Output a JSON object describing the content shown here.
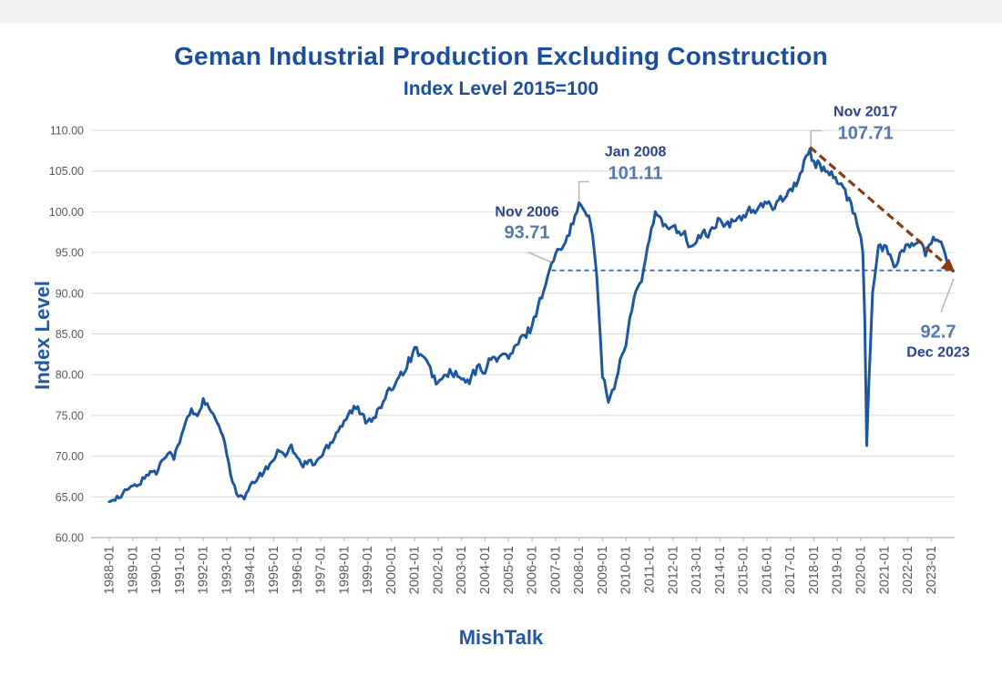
{
  "chart": {
    "title": "Geman Industrial Production Excluding Construction",
    "subtitle": "Index Level 2015=100",
    "y_axis_title": "Index Level",
    "source": "MishTalk"
  },
  "chart_data": {
    "type": "line",
    "title": "Geman Industrial Production Excluding Construction",
    "subtitle": "Index Level 2015=100",
    "xlabel": "",
    "ylabel": "Index Level",
    "ylim": [
      60,
      110
    ],
    "ytick_step": 5,
    "y_tick_labels": [
      "110.00",
      "105.00",
      "100.00",
      "95.00",
      "90.00",
      "85.00",
      "80.00",
      "75.00",
      "70.00",
      "65.00",
      "60.00"
    ],
    "x_tick_labels": [
      "1988-01",
      "1989-01",
      "1990-01",
      "1991-01",
      "1992-01",
      "1993-01",
      "1994-01",
      "1995-01",
      "1996-01",
      "1997-01",
      "1998-01",
      "1999-01",
      "2000-01",
      "2001-01",
      "2002-01",
      "2003-01",
      "2004-01",
      "2005-01",
      "2006-01",
      "2007-01",
      "2008-01",
      "2009-01",
      "2010-01",
      "2011-01",
      "2012-01",
      "2013-01",
      "2014-01",
      "2015-01",
      "2016-01",
      "2017-01",
      "2018-01",
      "2019-01",
      "2020-01",
      "2021-01",
      "2022-01",
      "2023-01"
    ],
    "x_start": "1988-01",
    "x_end": "2023-12",
    "frequency": "monthly",
    "grid": "horizontal",
    "legend": "none",
    "series": [
      {
        "name": "German industrial production excluding construction (index, 2015=100)",
        "quarterly_values": [
          64.4,
          64.9,
          65.0,
          65.9,
          66.2,
          66.6,
          67.3,
          68.2,
          67.9,
          69.6,
          70.6,
          69.9,
          71.7,
          74.2,
          75.6,
          75.0,
          76.8,
          75.9,
          74.5,
          73.2,
          70.3,
          66.9,
          65.0,
          64.8,
          66.2,
          67.1,
          67.9,
          68.6,
          69.7,
          70.9,
          70.2,
          71.2,
          69.7,
          68.8,
          69.4,
          69.1,
          69.9,
          71.1,
          72.1,
          73.3,
          74.4,
          75.4,
          76.0,
          74.9,
          74.4,
          74.9,
          75.6,
          77.1,
          78.2,
          79.6,
          80.4,
          81.6,
          83.2,
          82.6,
          81.4,
          80.1,
          78.9,
          79.6,
          80.4,
          79.9,
          79.4,
          78.9,
          80.1,
          80.9,
          80.6,
          81.9,
          82.1,
          82.4,
          82.1,
          83.1,
          84.2,
          85.0,
          86.0,
          88.4,
          90.5,
          92.8,
          94.6,
          95.9,
          97.1,
          98.6,
          100.9,
          100.1,
          98.6,
          92.5,
          80.2,
          76.5,
          78.6,
          81.6,
          84.1,
          88.1,
          90.6,
          92.6,
          96.6,
          99.8,
          98.9,
          97.6,
          98.6,
          97.6,
          97.1,
          95.6,
          96.1,
          97.6,
          97.1,
          98.1,
          99.1,
          98.1,
          98.6,
          99.1,
          99.6,
          100.1,
          100.1,
          100.6,
          100.9,
          100.6,
          101.6,
          101.9,
          102.6,
          103.6,
          105.1,
          107.2,
          106.0,
          105.8,
          104.6,
          104.9,
          103.6,
          102.6,
          101.6,
          99.6,
          97.0,
          72.5,
          90.1,
          95.6,
          95.6,
          94.6,
          93.1,
          95.1,
          96.1,
          95.6,
          96.6,
          94.6,
          96.1,
          97.1,
          95.1,
          93.3
        ]
      }
    ],
    "annotations": [
      {
        "date": "Nov 2006",
        "value": "93.71",
        "numeric": 93.71,
        "month_index": 226
      },
      {
        "date": "Jan 2008",
        "value": "101.11",
        "numeric": 101.11,
        "month_index": 240
      },
      {
        "date": "Nov 2017",
        "value": "107.71",
        "numeric": 107.71,
        "month_index": 358
      },
      {
        "date": "Dec 2023",
        "value": "92.7",
        "numeric": 92.7,
        "month_index": 431
      }
    ],
    "pinned_points": [
      {
        "month_index": 0,
        "value": 64.4
      },
      {
        "month_index": 226,
        "value": 93.71
      },
      {
        "month_index": 240,
        "value": 101.11
      },
      {
        "month_index": 358,
        "value": 107.71
      },
      {
        "month_index": 385,
        "value": 95.0
      },
      {
        "month_index": 386,
        "value": 87.0
      },
      {
        "month_index": 387,
        "value": 71.3
      },
      {
        "month_index": 431,
        "value": 92.7
      }
    ],
    "reference_line": {
      "type": "horizontal",
      "value": 92.8,
      "style": "dashed",
      "from_month_index": 226,
      "to_end": true
    },
    "trend_line": {
      "from_month_index": 358,
      "from_value": 107.71,
      "to_month_index": 431,
      "to_value": 92.7,
      "style": "dashed-arrow"
    },
    "colors": {
      "line": "#1d57a0",
      "dashed_reference": "#4472c4",
      "trend": "#8a3b10",
      "grid": "#d9d9d9",
      "axis": "#b0b0b0",
      "tick_text": "#595959",
      "title_text": "#1b4fa0",
      "axis_title_text": "#2257a8",
      "date_label": "#2c418f",
      "value_label": "#5578b2",
      "leader": "#b9b9b9"
    }
  }
}
